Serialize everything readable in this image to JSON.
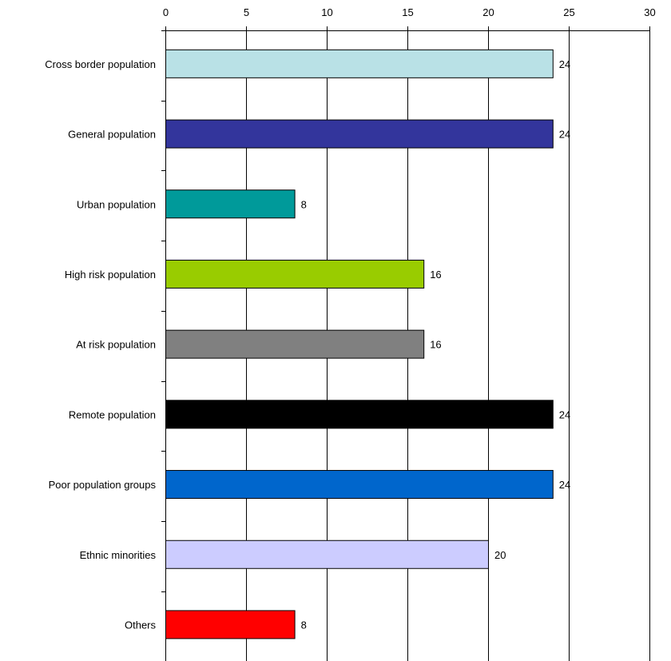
{
  "chart_data": {
    "type": "bar",
    "orientation": "horizontal",
    "title": "",
    "xlabel": "",
    "ylabel": "",
    "xlim": [
      0,
      30
    ],
    "x_ticks": [
      0,
      5,
      10,
      15,
      20,
      25,
      30
    ],
    "x_axis_position": "top",
    "grid": "vertical",
    "categories": [
      "Cross border population",
      "General population",
      "Urban population",
      "High risk population",
      "At risk population",
      "Remote population",
      "Poor population groups",
      "Ethnic minorities",
      "Others"
    ],
    "values": [
      24,
      24,
      8,
      16,
      16,
      24,
      24,
      20,
      8
    ],
    "data_labels": [
      "24",
      "24",
      "8",
      "16",
      "16",
      "24",
      "24",
      "20",
      "8"
    ],
    "colors": [
      "#b9e1e6",
      "#33359c",
      "#009a9a",
      "#99cc00",
      "#808080",
      "#000000",
      "#0066cc",
      "#ccccff",
      "#ff0000"
    ]
  }
}
